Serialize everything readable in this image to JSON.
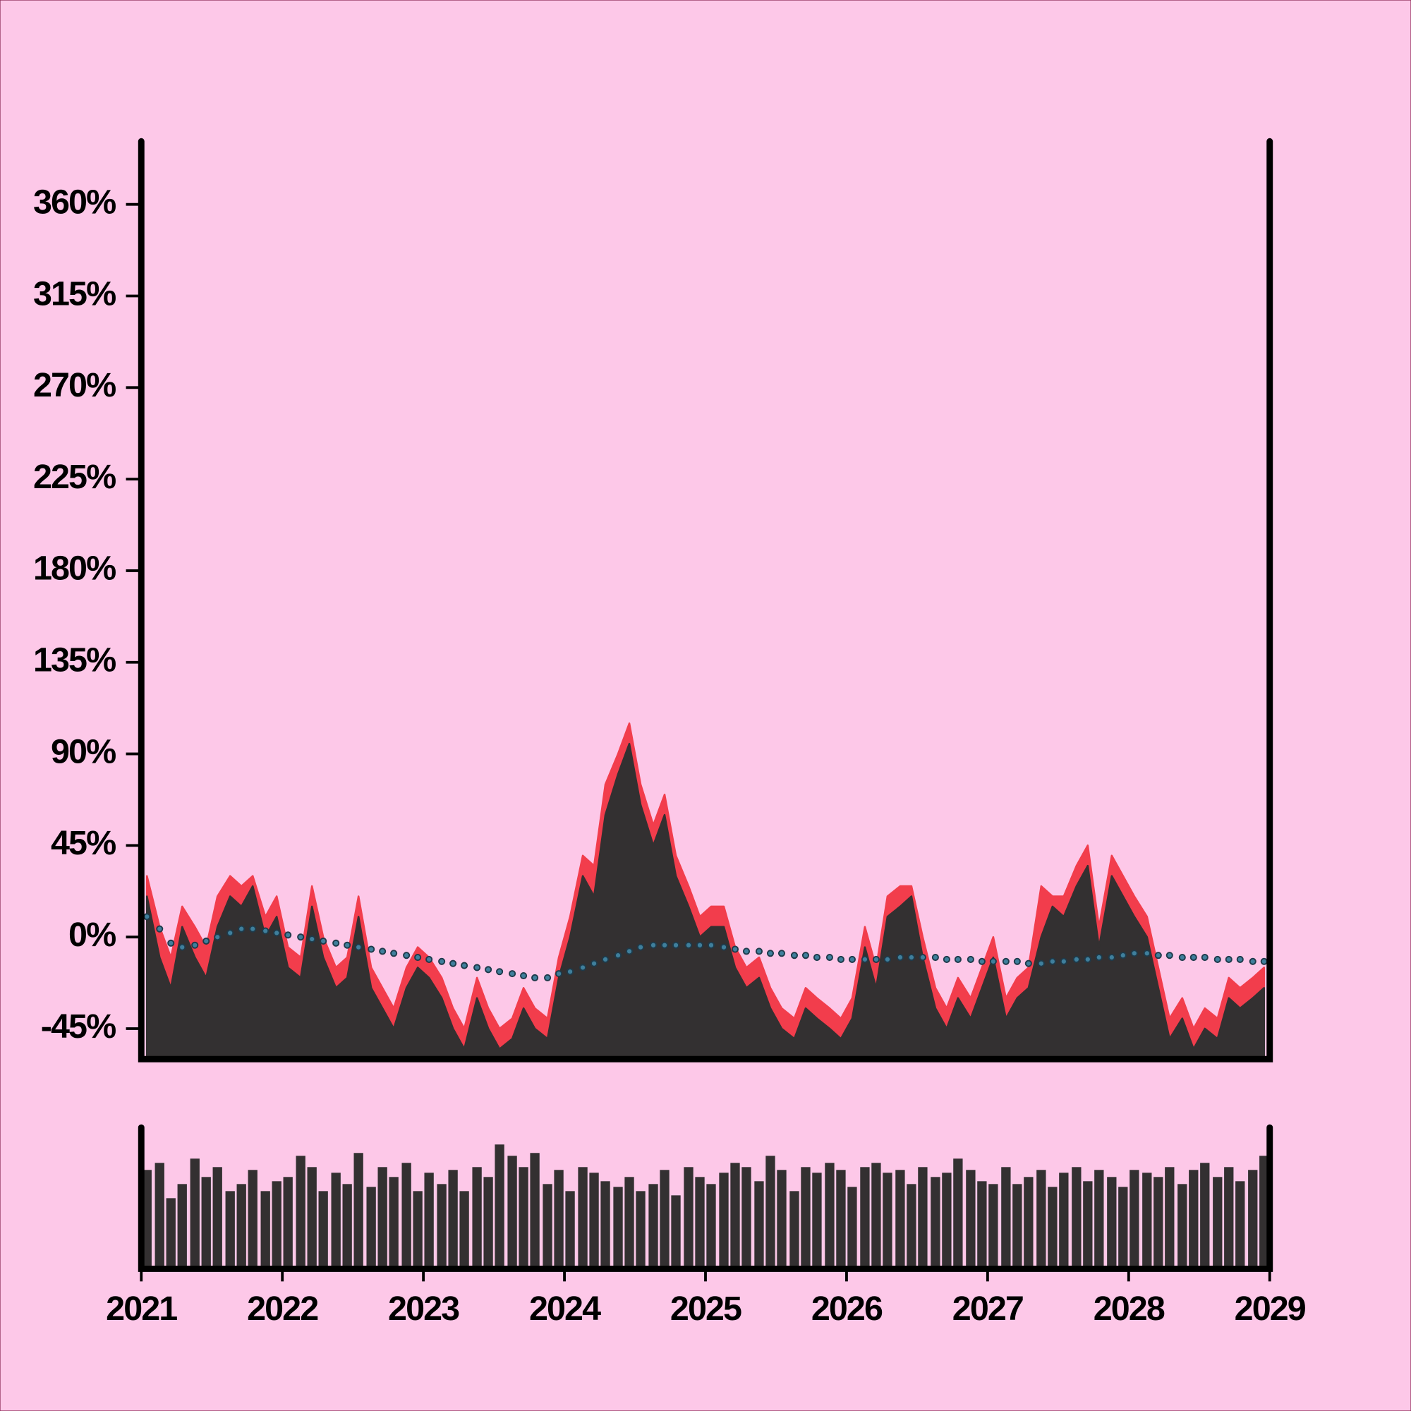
{
  "chart_data": [
    {
      "type": "area",
      "xlim": [
        2021,
        2029
      ],
      "x": [
        2021.04,
        2021.13,
        2021.21,
        2021.29,
        2021.38,
        2021.46,
        2021.54,
        2021.63,
        2021.71,
        2021.79,
        2021.88,
        2021.96,
        2022.04,
        2022.13,
        2022.21,
        2022.29,
        2022.38,
        2022.46,
        2022.54,
        2022.63,
        2022.71,
        2022.79,
        2022.88,
        2022.96,
        2023.04,
        2023.13,
        2023.21,
        2023.29,
        2023.38,
        2023.46,
        2023.54,
        2023.63,
        2023.71,
        2023.79,
        2023.88,
        2023.96,
        2024.04,
        2024.13,
        2024.21,
        2024.29,
        2024.38,
        2024.46,
        2024.54,
        2024.63,
        2024.71,
        2024.79,
        2024.88,
        2024.96,
        2025.04,
        2025.13,
        2025.21,
        2025.29,
        2025.38,
        2025.46,
        2025.54,
        2025.63,
        2025.71,
        2025.79,
        2025.88,
        2025.96,
        2026.04,
        2026.13,
        2026.21,
        2026.29,
        2026.38,
        2026.46,
        2026.54,
        2026.63,
        2026.71,
        2026.79,
        2026.88,
        2026.96,
        2027.04,
        2027.13,
        2027.21,
        2027.29,
        2027.38,
        2027.46,
        2027.54,
        2027.63,
        2027.71,
        2027.79,
        2027.88,
        2027.96,
        2028.04,
        2028.13,
        2028.21,
        2028.29,
        2028.38,
        2028.46,
        2028.54,
        2028.63,
        2028.71,
        2028.79,
        2028.88,
        2028.96
      ],
      "ylim": [
        -60,
        391
      ],
      "yticks": [
        {
          "value": -45,
          "label": "-45%"
        },
        {
          "value": 0,
          "label": "0%"
        },
        {
          "value": 45,
          "label": "45%"
        },
        {
          "value": 90,
          "label": "90%"
        },
        {
          "value": 135,
          "label": "135%"
        },
        {
          "value": 180,
          "label": "180%"
        },
        {
          "value": 225,
          "label": "225%"
        },
        {
          "value": 270,
          "label": "270%"
        },
        {
          "value": 315,
          "label": "315%"
        },
        {
          "value": 360,
          "label": "360%"
        }
      ],
      "series": [
        {
          "style": "area",
          "color": "#f23d4c",
          "values": [
            30,
            5,
            -10,
            15,
            5,
            -5,
            20,
            30,
            25,
            30,
            10,
            20,
            -5,
            -10,
            25,
            0,
            -15,
            -10,
            20,
            -15,
            -25,
            -35,
            -15,
            -5,
            -10,
            -20,
            -35,
            -45,
            -20,
            -35,
            -45,
            -40,
            -25,
            -35,
            -40,
            -10,
            10,
            40,
            35,
            75,
            90,
            105,
            75,
            55,
            70,
            40,
            25,
            10,
            15,
            15,
            -5,
            -15,
            -10,
            -25,
            -35,
            -40,
            -25,
            -30,
            -35,
            -40,
            -30,
            5,
            -15,
            20,
            25,
            25,
            0,
            -25,
            -35,
            -20,
            -30,
            -15,
            0,
            -30,
            -20,
            -15,
            25,
            20,
            20,
            35,
            45,
            5,
            40,
            30,
            20,
            10,
            -15,
            -40,
            -30,
            -45,
            -35,
            -40,
            -20,
            -25,
            -20,
            -15
          ]
        },
        {
          "style": "area",
          "color": "#333031",
          "values": [
            20,
            -10,
            -25,
            5,
            -10,
            -20,
            5,
            20,
            15,
            25,
            0,
            10,
            -15,
            -20,
            15,
            -10,
            -25,
            -20,
            10,
            -25,
            -35,
            -45,
            -25,
            -15,
            -20,
            -30,
            -45,
            -55,
            -30,
            -45,
            -55,
            -50,
            -35,
            -45,
            -50,
            -20,
            0,
            30,
            20,
            60,
            80,
            95,
            65,
            45,
            60,
            30,
            15,
            0,
            5,
            5,
            -15,
            -25,
            -20,
            -35,
            -45,
            -50,
            -35,
            -40,
            -45,
            -50,
            -40,
            -5,
            -25,
            10,
            15,
            20,
            -10,
            -35,
            -45,
            -30,
            -40,
            -25,
            -10,
            -40,
            -30,
            -25,
            0,
            15,
            10,
            25,
            35,
            -5,
            30,
            20,
            10,
            0,
            -25,
            -50,
            -40,
            -55,
            -45,
            -50,
            -30,
            -35,
            -30,
            -25
          ]
        },
        {
          "style": "dots",
          "color": "#1e3a4a",
          "values": [
            10,
            4,
            -3,
            -5,
            -4,
            -2,
            0,
            2,
            4,
            4,
            3,
            2,
            1,
            0,
            -1,
            -2,
            -3,
            -4,
            -5,
            -6,
            -7,
            -8,
            -9,
            -10,
            -11,
            -12,
            -13,
            -14,
            -15,
            -16,
            -17,
            -18,
            -19,
            -20,
            -20,
            -18,
            -17,
            -15,
            -13,
            -11,
            -9,
            -7,
            -5,
            -4,
            -4,
            -4,
            -4,
            -4,
            -4,
            -5,
            -6,
            -7,
            -7,
            -8,
            -8,
            -9,
            -9,
            -10,
            -10,
            -11,
            -11,
            -11,
            -11,
            -11,
            -10,
            -10,
            -10,
            -10,
            -11,
            -11,
            -11,
            -12,
            -12,
            -12,
            -12,
            -13,
            -13,
            -12,
            -12,
            -11,
            -11,
            -10,
            -10,
            -9,
            -8,
            -8,
            -9,
            -9,
            -10,
            -10,
            -10,
            -11,
            -11,
            -11,
            -12,
            -12
          ]
        }
      ]
    },
    {
      "type": "bar",
      "xlim": [
        2021,
        2029
      ],
      "xticks": [
        2021,
        2022,
        2023,
        2024,
        2025,
        2026,
        2027,
        2028,
        2029
      ],
      "x": [
        2021.04,
        2021.13,
        2021.21,
        2021.29,
        2021.38,
        2021.46,
        2021.54,
        2021.63,
        2021.71,
        2021.79,
        2021.88,
        2021.96,
        2022.04,
        2022.13,
        2022.21,
        2022.29,
        2022.38,
        2022.46,
        2022.54,
        2022.63,
        2022.71,
        2022.79,
        2022.88,
        2022.96,
        2023.04,
        2023.13,
        2023.21,
        2023.29,
        2023.38,
        2023.46,
        2023.54,
        2023.63,
        2023.71,
        2023.79,
        2023.88,
        2023.96,
        2024.04,
        2024.13,
        2024.21,
        2024.29,
        2024.38,
        2024.46,
        2024.54,
        2024.63,
        2024.71,
        2024.79,
        2024.88,
        2024.96,
        2025.04,
        2025.13,
        2025.21,
        2025.29,
        2025.38,
        2025.46,
        2025.54,
        2025.63,
        2025.71,
        2025.79,
        2025.88,
        2025.96,
        2026.04,
        2026.13,
        2026.21,
        2026.29,
        2026.38,
        2026.46,
        2026.54,
        2026.63,
        2026.71,
        2026.79,
        2026.88,
        2026.96,
        2027.04,
        2027.13,
        2027.21,
        2027.29,
        2027.38,
        2027.46,
        2027.54,
        2027.63,
        2027.71,
        2027.79,
        2027.88,
        2027.96,
        2028.04,
        2028.13,
        2028.21,
        2028.29,
        2028.38,
        2028.46,
        2028.54,
        2028.63,
        2028.71,
        2028.79,
        2028.88,
        2028.96
      ],
      "ylim": [
        0,
        100
      ],
      "color": "#333031",
      "values": [
        70,
        75,
        50,
        60,
        78,
        65,
        72,
        55,
        60,
        70,
        55,
        62,
        65,
        80,
        72,
        55,
        68,
        60,
        82,
        58,
        72,
        65,
        75,
        55,
        68,
        60,
        70,
        55,
        72,
        65,
        88,
        80,
        72,
        82,
        60,
        70,
        55,
        72,
        68,
        62,
        58,
        65,
        55,
        60,
        70,
        52,
        72,
        65,
        60,
        68,
        75,
        72,
        62,
        80,
        70,
        55,
        72,
        68,
        75,
        70,
        58,
        72,
        75,
        68,
        70,
        60,
        72,
        65,
        68,
        78,
        70,
        62,
        60,
        72,
        60,
        65,
        70,
        58,
        68,
        72,
        62,
        70,
        65,
        58,
        70,
        68,
        65,
        72,
        60,
        70,
        75,
        65,
        72,
        62,
        70,
        80
      ]
    }
  ]
}
